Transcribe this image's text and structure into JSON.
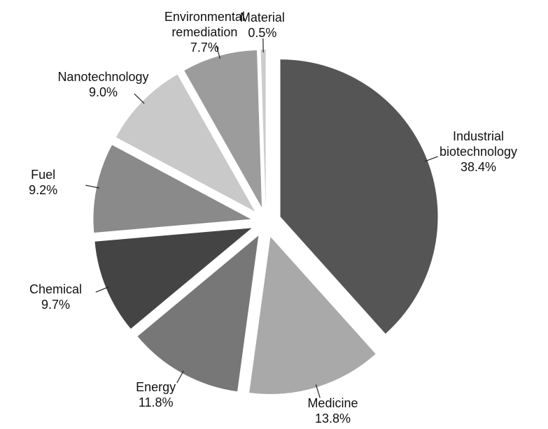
{
  "chart_data": {
    "type": "pie",
    "categories": [
      "Industrial biotechnology",
      "Medicine",
      "Energy",
      "Chemical",
      "Fuel",
      "Nanotechnology",
      "Environmental remediation",
      "Material"
    ],
    "values": [
      38.4,
      13.8,
      11.8,
      9.7,
      9.2,
      9.0,
      7.7,
      0.5
    ],
    "value_labels": [
      "38.4%",
      "13.8%",
      "11.8%",
      "9.7%",
      "9.2%",
      "9.0%",
      "7.7%",
      "0.5%"
    ],
    "colors": [
      "#555555",
      "#a9a9a9",
      "#777777",
      "#444444",
      "#8a8a8a",
      "#c9c9c9",
      "#9c9c9c",
      "#cccccc"
    ]
  }
}
